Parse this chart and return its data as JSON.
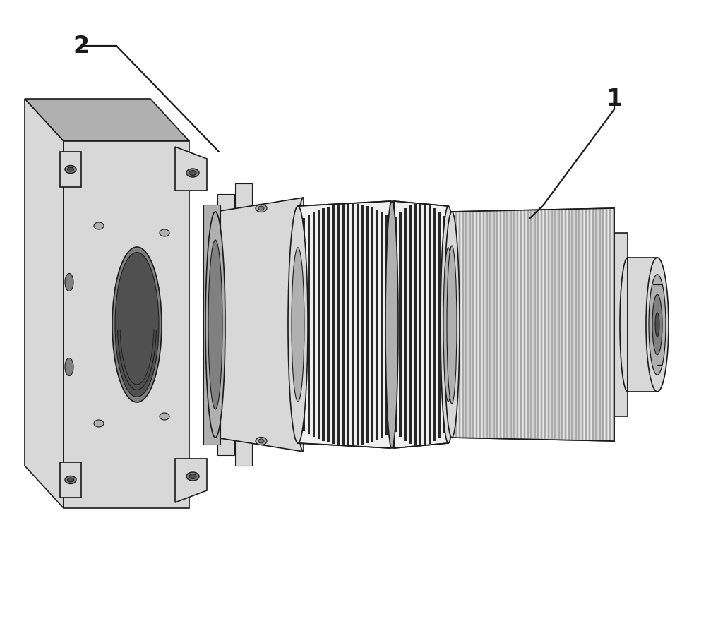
{
  "background_color": "#ffffff",
  "line_color": "#000000",
  "label_1": "1",
  "label_2": "2",
  "figsize": [
    10.0,
    8.8
  ],
  "dpi": 100,
  "c_white": "#f0f0f0",
  "c_light": "#d8d8d8",
  "c_mid": "#b0b0b0",
  "c_dark": "#808080",
  "c_vdark": "#505050",
  "c_black": "#1a1a1a",
  "c_stripe_dark": "#282828",
  "c_stripe_light": "#e8e8e8"
}
